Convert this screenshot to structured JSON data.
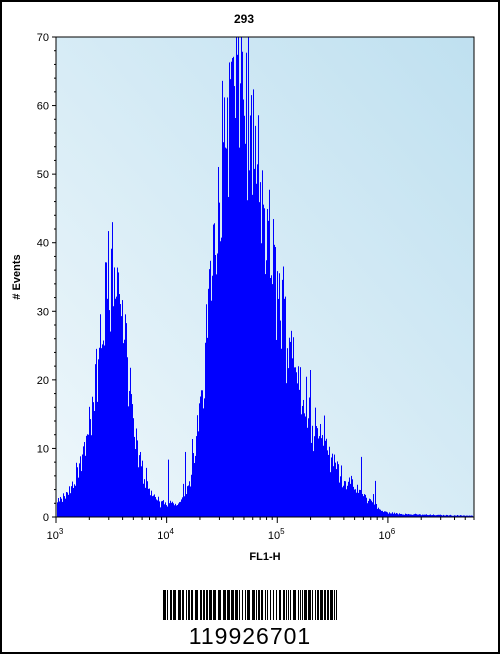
{
  "chart_data": {
    "type": "histogram",
    "title": "293",
    "xlabel": "FL1-H",
    "ylabel": "# Events",
    "x_scale": "log",
    "xlim": [
      1000,
      6000000
    ],
    "ylim": [
      0,
      70
    ],
    "y_ticks": [
      0,
      10,
      20,
      30,
      40,
      50,
      60,
      70
    ],
    "x_ticks": [
      {
        "value": 1000,
        "base": "10",
        "exp": "3"
      },
      {
        "value": 10000,
        "base": "10",
        "exp": "4"
      },
      {
        "value": 100000,
        "base": "10",
        "exp": "5"
      },
      {
        "value": 1000000,
        "base": "10",
        "exp": "6"
      }
    ],
    "fill_color": "#0000ff",
    "plot_background": "#cfe7f3",
    "peaks": [
      {
        "fl1_h": 3200,
        "events": 43
      },
      {
        "fl1_h": 47000,
        "events": 70
      }
    ],
    "envelope": [
      [
        1000,
        2
      ],
      [
        1200,
        3
      ],
      [
        1500,
        5
      ],
      [
        1800,
        10
      ],
      [
        2100,
        16
      ],
      [
        2400,
        22
      ],
      [
        2700,
        29
      ],
      [
        3000,
        34
      ],
      [
        3300,
        36
      ],
      [
        3600,
        33
      ],
      [
        4000,
        28
      ],
      [
        4500,
        20
      ],
      [
        5000,
        13
      ],
      [
        5700,
        8
      ],
      [
        6500,
        5
      ],
      [
        7500,
        3
      ],
      [
        8500,
        2
      ],
      [
        10000,
        2
      ],
      [
        12000,
        2
      ],
      [
        14000,
        3
      ],
      [
        16000,
        5
      ],
      [
        18000,
        9
      ],
      [
        20000,
        16
      ],
      [
        23000,
        28
      ],
      [
        26000,
        40
      ],
      [
        30000,
        50
      ],
      [
        34000,
        57
      ],
      [
        38000,
        61
      ],
      [
        43000,
        64
      ],
      [
        47000,
        65
      ],
      [
        52000,
        60
      ],
      [
        58000,
        55
      ],
      [
        65000,
        50
      ],
      [
        72000,
        45
      ],
      [
        80000,
        41
      ],
      [
        90000,
        37
      ],
      [
        100000,
        33
      ],
      [
        115000,
        29
      ],
      [
        130000,
        26
      ],
      [
        150000,
        22
      ],
      [
        175000,
        18
      ],
      [
        200000,
        15
      ],
      [
        240000,
        12
      ],
      [
        290000,
        9
      ],
      [
        350000,
        7
      ],
      [
        430000,
        5
      ],
      [
        520000,
        4
      ],
      [
        620000,
        3
      ],
      [
        720000,
        2
      ],
      [
        850000,
        1
      ],
      [
        1000000,
        0.6
      ],
      [
        1500000,
        0.4
      ],
      [
        2500000,
        0.3
      ],
      [
        5500000,
        0.2
      ]
    ],
    "grid": false,
    "legend": "none"
  },
  "barcode": {
    "number": "119926701"
  }
}
